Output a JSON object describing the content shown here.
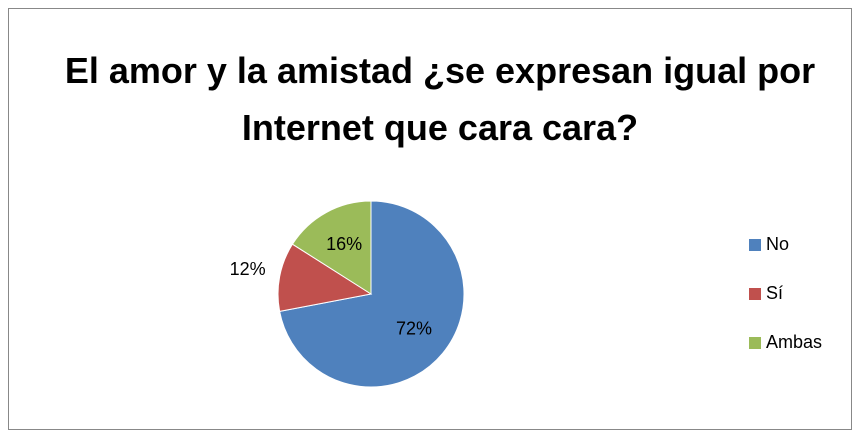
{
  "chart_data": {
    "type": "pie",
    "title": "El amor y la amistad ¿se expresan igual por Internet que cara cara?",
    "categories": [
      "No",
      "Sí",
      "Ambas"
    ],
    "values": [
      72,
      12,
      16
    ],
    "value_labels": [
      "72%",
      "12%",
      "16%"
    ],
    "colors": [
      "#4f81bd",
      "#c0504d",
      "#9bbb59"
    ],
    "legend": "right"
  }
}
